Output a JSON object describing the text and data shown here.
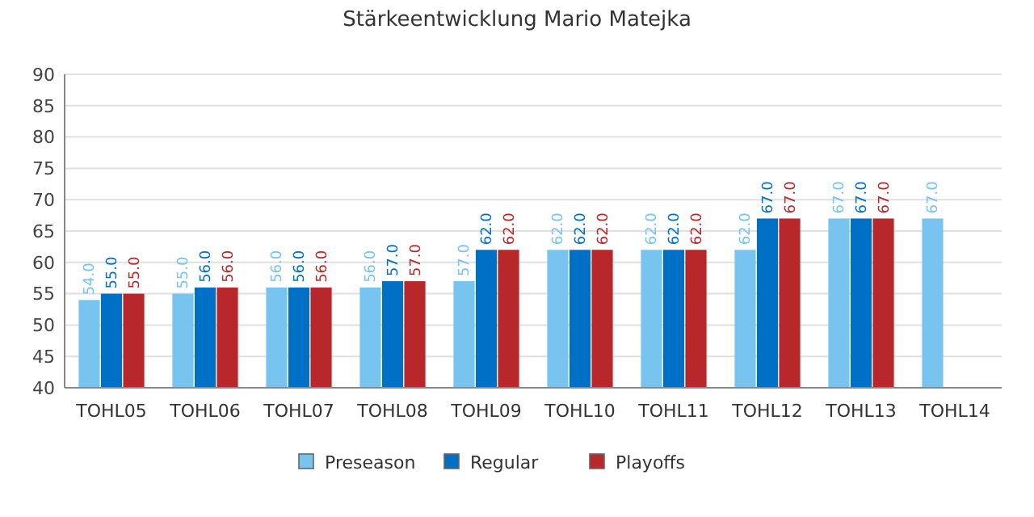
{
  "chart_data": {
    "type": "bar",
    "title": "Stärkeentwicklung Mario Matejka",
    "categories": [
      "TOHL05",
      "TOHL06",
      "TOHL07",
      "TOHL08",
      "TOHL09",
      "TOHL10",
      "TOHL11",
      "TOHL12",
      "TOHL13",
      "TOHL14"
    ],
    "series": [
      {
        "name": "Preseason",
        "color": "#76c4ef",
        "values": [
          54,
          55,
          56,
          56,
          57,
          62,
          62,
          62,
          67,
          67
        ],
        "value_labels": [
          "54.0",
          "55.0",
          "56.0",
          "56.0",
          "57.0",
          "62.0",
          "62.0",
          "62.0",
          "67.0",
          "67.0"
        ]
      },
      {
        "name": "Regular",
        "color": "#0070c6",
        "values": [
          55,
          56,
          56,
          57,
          62,
          62,
          62,
          67,
          67,
          null
        ],
        "value_labels": [
          "55.0",
          "56.0",
          "56.0",
          "57.0",
          "62.0",
          "62.0",
          "62.0",
          "67.0",
          "67.0",
          null
        ]
      },
      {
        "name": "Playoffs",
        "color": "#b8282a",
        "values": [
          55,
          56,
          56,
          57,
          62,
          62,
          62,
          67,
          67,
          null
        ],
        "value_labels": [
          "55.0",
          "56.0",
          "56.0",
          "57.0",
          "62.0",
          "62.0",
          "62.0",
          "67.0",
          "67.0",
          null
        ]
      }
    ],
    "ylim": [
      40,
      90
    ],
    "yticks": [
      40,
      45,
      50,
      55,
      60,
      65,
      70,
      75,
      80,
      85,
      90
    ],
    "grid": "y",
    "legend": "bottom"
  }
}
